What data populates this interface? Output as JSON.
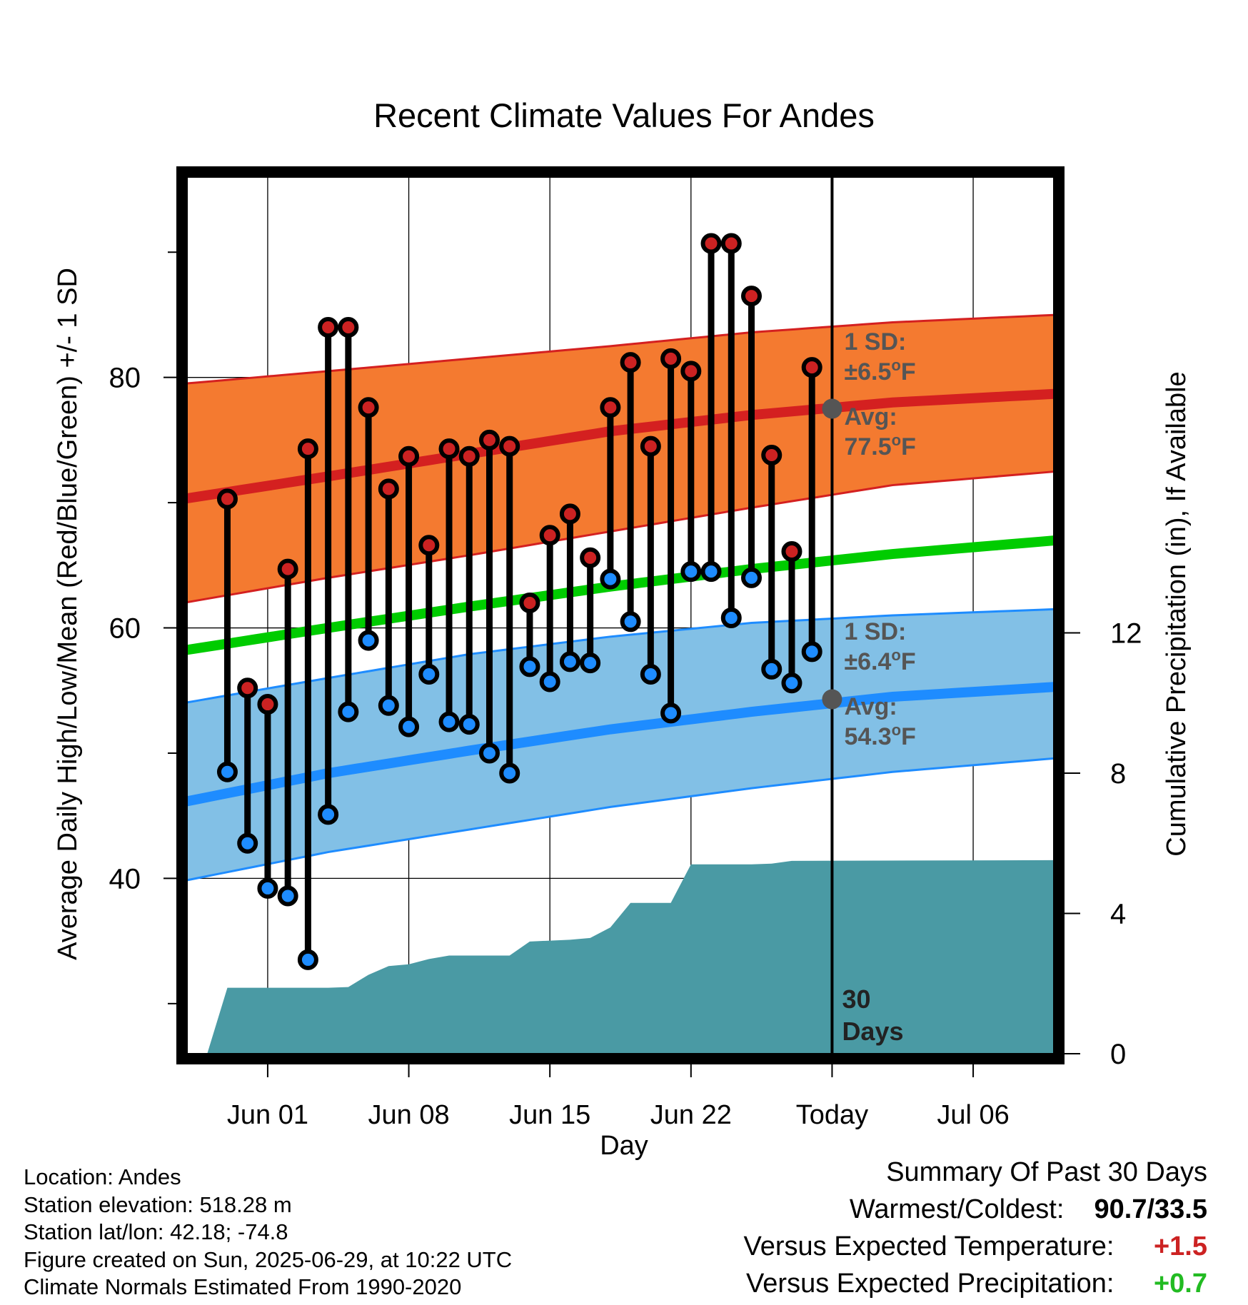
{
  "chart_data": {
    "type": "line",
    "title": "Recent Climate Values For Andes",
    "xlabel": "Day",
    "ylabel": "Average Daily High/Low/Mean (Red/Blue/Green) +/- 1 SD",
    "ylabel_right": "Cumulative Precipitation (in), If Available",
    "ylim": [
      26,
      96
    ],
    "ylim_right": [
      0,
      25
    ],
    "x_range": [
      "2025-05-28",
      "2025-07-10"
    ],
    "x_ticks": [
      {
        "date": "2025-06-01",
        "label": "Jun 01"
      },
      {
        "date": "2025-06-08",
        "label": "Jun 08"
      },
      {
        "date": "2025-06-15",
        "label": "Jun 15"
      },
      {
        "date": "2025-06-22",
        "label": "Jun 22"
      },
      {
        "date": "2025-06-29",
        "label": "Today"
      },
      {
        "date": "2025-07-06",
        "label": "Jul 06"
      }
    ],
    "y_ticks_left": [
      40,
      60,
      80
    ],
    "y_ticks_right": [
      0,
      4,
      8,
      12
    ],
    "grid": true,
    "today": "2025-06-29",
    "today_label": "30 Days",
    "colors": {
      "high_band": "#f47a30",
      "high_line": "#d42020",
      "low_band": "#82c0e6",
      "low_line": "#1e8cff",
      "mean_line": "#00cc00",
      "precip": "#4a9aa4",
      "high_marker": "#cc2222",
      "low_marker": "#1e8cff",
      "avg_marker": "#555555",
      "band_text": "#555555"
    },
    "normals": {
      "dates": [
        "2025-05-28",
        "2025-06-04",
        "2025-06-11",
        "2025-06-18",
        "2025-06-25",
        "2025-07-02",
        "2025-07-09"
      ],
      "high_mean": [
        70.3,
        72.1,
        73.9,
        75.7,
        77.0,
        78.0,
        78.7
      ],
      "high_upper": [
        79.5,
        80.5,
        81.5,
        82.5,
        83.6,
        84.4,
        85.0
      ],
      "high_lower": [
        62.0,
        64.0,
        65.8,
        67.7,
        69.6,
        71.4,
        72.5
      ],
      "mean_line": [
        58.2,
        60.0,
        61.7,
        63.3,
        64.7,
        65.9,
        67.0
      ],
      "low_mean": [
        46.1,
        48.4,
        50.2,
        51.9,
        53.3,
        54.5,
        55.3
      ],
      "low_upper": [
        54.0,
        56.0,
        57.9,
        59.3,
        60.4,
        61.0,
        61.5
      ],
      "low_lower": [
        39.8,
        42.1,
        43.9,
        45.7,
        47.2,
        48.5,
        49.6
      ]
    },
    "series": [
      {
        "name": "High",
        "dates": [
          "2025-05-30",
          "2025-05-31",
          "2025-06-01",
          "2025-06-02",
          "2025-06-03",
          "2025-06-04",
          "2025-06-05",
          "2025-06-06",
          "2025-06-07",
          "2025-06-08",
          "2025-06-09",
          "2025-06-10",
          "2025-06-11",
          "2025-06-12",
          "2025-06-13",
          "2025-06-14",
          "2025-06-15",
          "2025-06-16",
          "2025-06-17",
          "2025-06-18",
          "2025-06-19",
          "2025-06-20",
          "2025-06-21",
          "2025-06-22",
          "2025-06-23",
          "2025-06-24",
          "2025-06-25",
          "2025-06-26",
          "2025-06-27",
          "2025-06-28"
        ],
        "values": [
          70.3,
          55.2,
          53.9,
          64.7,
          74.3,
          84.0,
          84.0,
          77.6,
          71.1,
          73.7,
          66.6,
          74.3,
          73.7,
          75.0,
          74.5,
          62.0,
          67.4,
          69.1,
          65.6,
          77.6,
          81.2,
          74.5,
          81.5,
          80.5,
          90.7,
          90.7,
          86.5,
          73.8,
          66.1,
          80.8
        ]
      },
      {
        "name": "Low",
        "dates": [
          "2025-05-30",
          "2025-05-31",
          "2025-06-01",
          "2025-06-02",
          "2025-06-03",
          "2025-06-04",
          "2025-06-05",
          "2025-06-06",
          "2025-06-07",
          "2025-06-08",
          "2025-06-09",
          "2025-06-10",
          "2025-06-11",
          "2025-06-12",
          "2025-06-13",
          "2025-06-14",
          "2025-06-15",
          "2025-06-16",
          "2025-06-17",
          "2025-06-18",
          "2025-06-19",
          "2025-06-20",
          "2025-06-21",
          "2025-06-22",
          "2025-06-23",
          "2025-06-24",
          "2025-06-25",
          "2025-06-26",
          "2025-06-27",
          "2025-06-28"
        ],
        "values": [
          48.5,
          42.8,
          39.2,
          38.6,
          33.5,
          45.1,
          53.3,
          59.0,
          53.8,
          52.1,
          56.3,
          52.5,
          52.3,
          50.0,
          48.4,
          56.9,
          55.7,
          57.3,
          57.2,
          63.9,
          60.5,
          56.3,
          53.2,
          64.5,
          64.5,
          60.8,
          64.0,
          56.7,
          55.6,
          58.1
        ]
      },
      {
        "name": "Cumulative Precipitation",
        "dates": [
          "2025-05-29",
          "2025-05-30",
          "2025-06-04",
          "2025-06-05",
          "2025-06-06",
          "2025-06-07",
          "2025-06-08",
          "2025-06-09",
          "2025-06-10",
          "2025-06-13",
          "2025-06-14",
          "2025-06-16",
          "2025-06-17",
          "2025-06-18",
          "2025-06-19",
          "2025-06-20",
          "2025-06-21",
          "2025-06-22",
          "2025-06-25",
          "2025-06-26",
          "2025-06-27",
          "2025-07-10"
        ],
        "values": [
          0.0,
          1.88,
          1.88,
          1.9,
          2.25,
          2.5,
          2.55,
          2.7,
          2.8,
          2.8,
          3.2,
          3.25,
          3.3,
          3.6,
          4.3,
          4.3,
          4.3,
          5.4,
          5.4,
          5.42,
          5.5,
          5.52
        ]
      }
    ],
    "annotations": {
      "high_sd": "1 SD:",
      "high_sd_value": "±6.5",
      "high_avg": "Avg:",
      "high_avg_value": "77.5",
      "low_sd": "1 SD:",
      "low_sd_value": "±6.4",
      "low_avg": "Avg:",
      "low_avg_value": "54.3",
      "unit": "F",
      "degree": "o",
      "today_avg_high": 77.5,
      "today_avg_low": 54.3
    }
  },
  "info": {
    "location": "Location: Andes",
    "elevation": "Station elevation: 518.28 m",
    "latlon": "Station lat/lon: 42.18; -74.8",
    "created": "Figure created on Sun, 2025-06-29, at 10:22 UTC",
    "normals": "Climate Normals Estimated From 1990-2020"
  },
  "summary": {
    "title": "Summary Of Past 30 Days",
    "warm_cold_label": "Warmest/Coldest:",
    "warm_cold_value": "90.7/33.5",
    "temp_label": "Versus Expected Temperature:",
    "temp_value": "+1.5",
    "temp_color": "#cc2222",
    "precip_label": "Versus Expected Precipitation:",
    "precip_value": "+0.7",
    "precip_color": "#22bb22"
  }
}
